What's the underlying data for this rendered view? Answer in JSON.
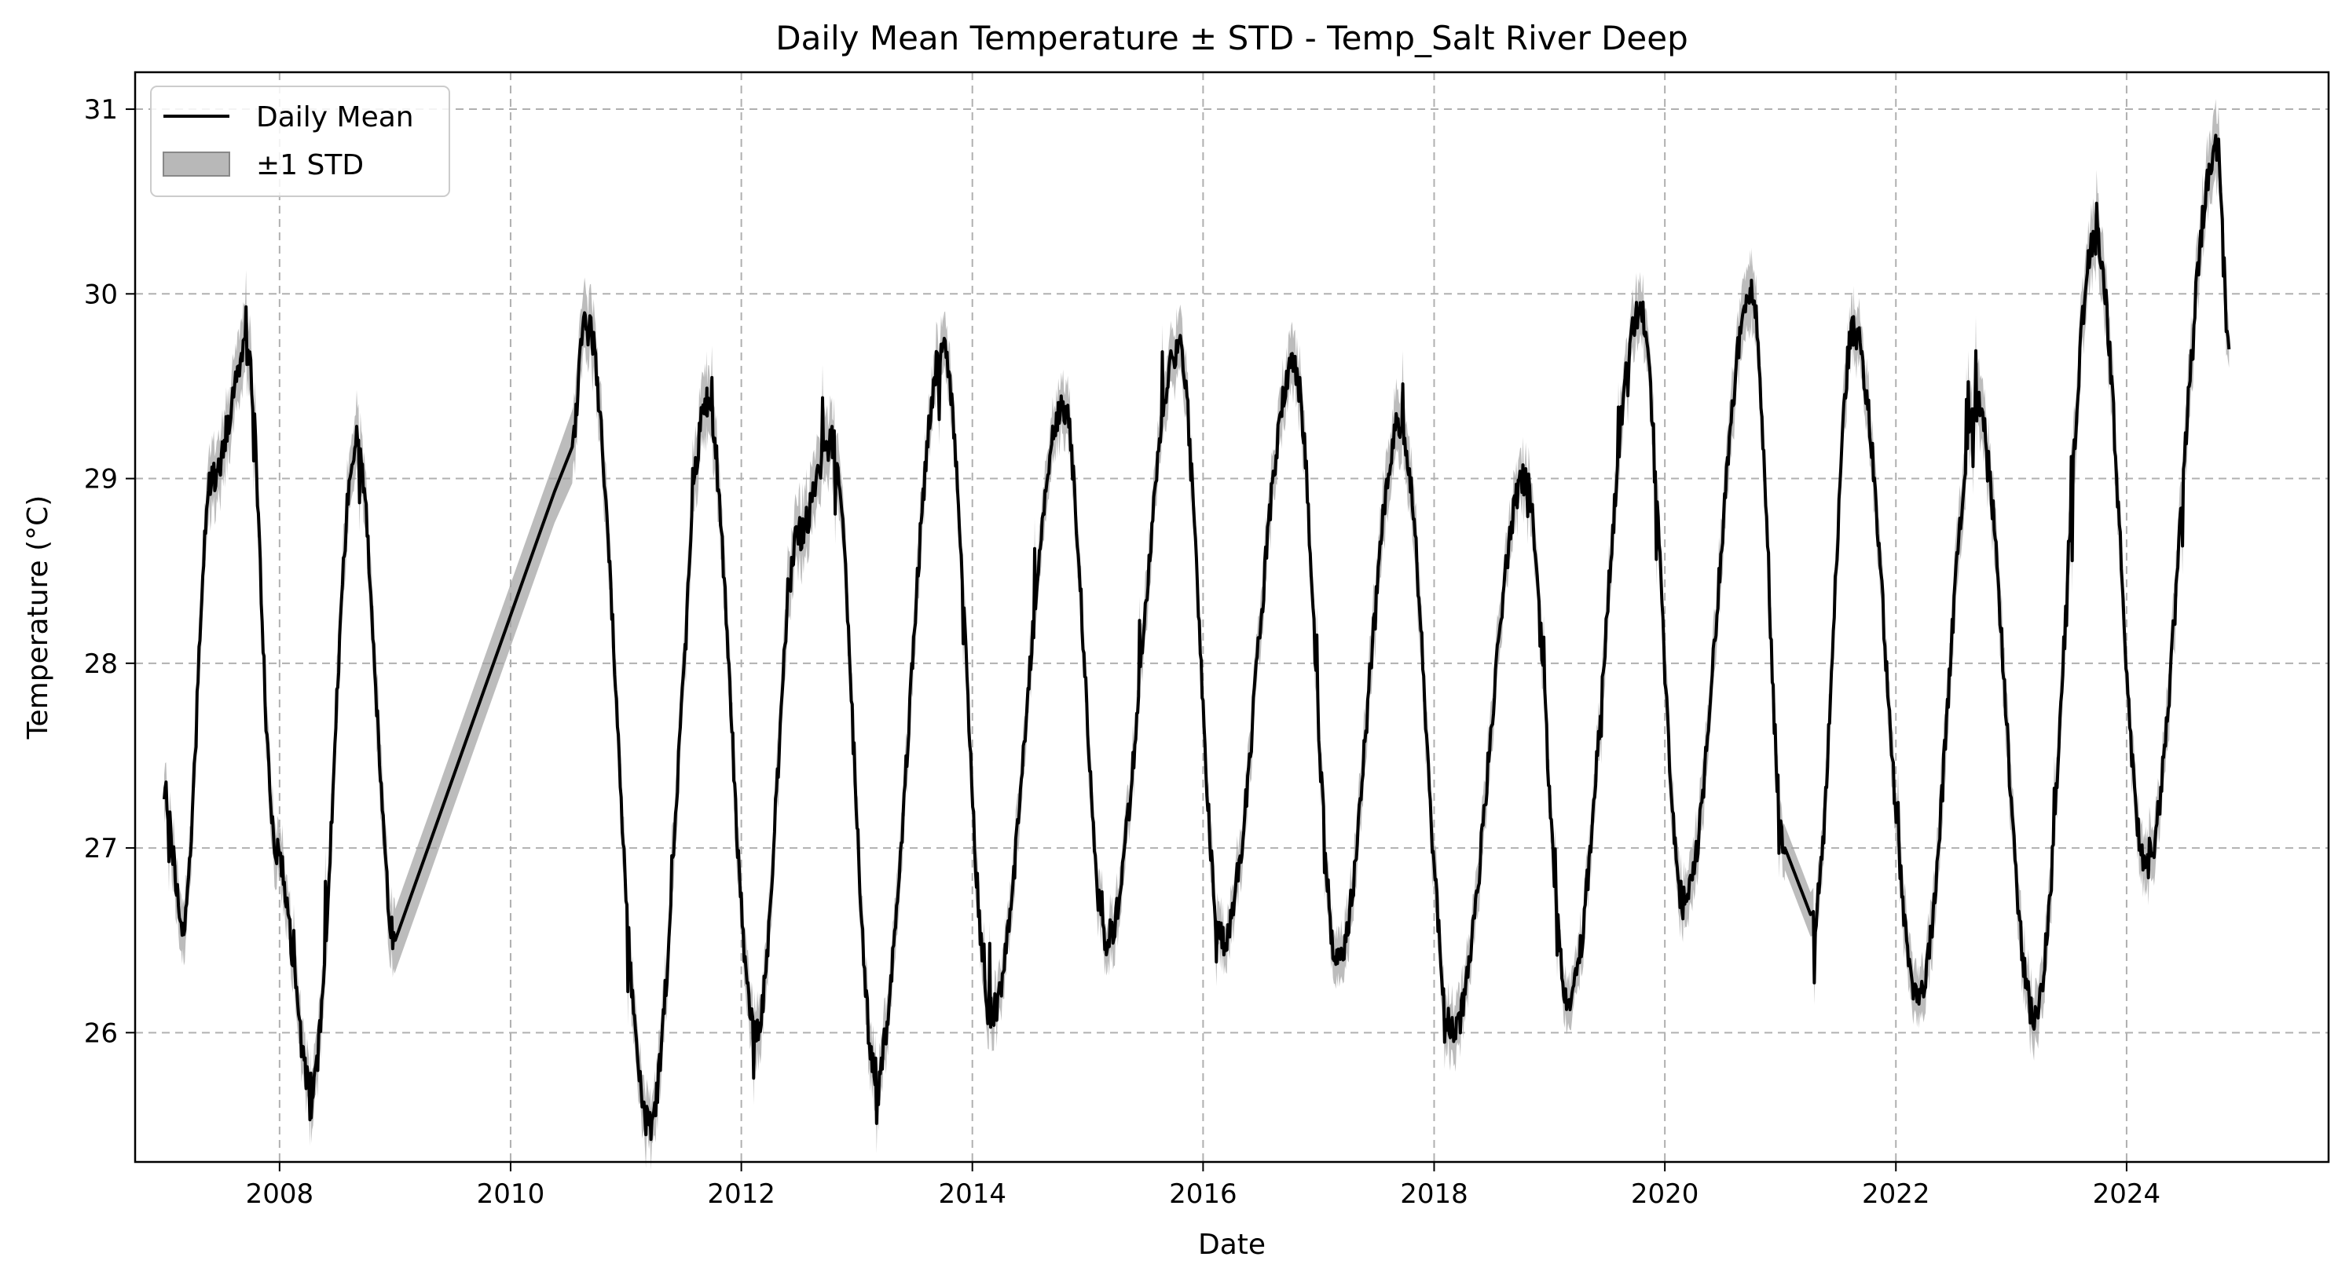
{
  "chart_data": {
    "type": "line",
    "title": "Daily Mean Temperature ± STD - Temp_Salt River Deep",
    "xlabel": "Date",
    "ylabel": "Temperature (°C)",
    "xlim": [
      "2006-10-01",
      "2025-10-01"
    ],
    "ylim": [
      25.3,
      31.2
    ],
    "x_ticks": [
      "2008",
      "2010",
      "2012",
      "2014",
      "2016",
      "2018",
      "2020",
      "2022",
      "2024"
    ],
    "y_ticks": [
      26,
      27,
      28,
      29,
      30,
      31
    ],
    "grid": true,
    "legend_position": "top-left",
    "line_color": "#000000",
    "band_color": "#a0a0a0",
    "series": [
      {
        "name": "Daily Mean",
        "x": [
          "2007-01-01",
          "2007-03-01",
          "2007-06-01",
          "2007-09-20",
          "2007-12-20",
          "2008-04-10",
          "2008-09-01",
          "2009-01-01",
          "2010-07-15",
          "2010-08-25",
          "2011-03-15",
          "2011-09-15",
          "2012-02-15",
          "2012-07-01",
          "2012-10-15",
          "2013-03-01",
          "2013-10-01",
          "2014-03-01",
          "2014-10-15",
          "2015-03-01",
          "2015-10-15",
          "2016-03-01",
          "2016-10-15",
          "2017-03-01",
          "2017-09-15",
          "2018-03-01",
          "2018-10-15",
          "2019-03-01",
          "2019-10-15",
          "2020-03-01",
          "2020-10-01",
          "2021-01-15",
          "2021-04-15",
          "2021-08-20",
          "2022-03-15",
          "2022-09-15",
          "2023-03-15",
          "2023-09-25",
          "2024-03-01",
          "2024-10-15",
          "2024-11-20"
        ],
        "y": [
          27.3,
          26.6,
          29.0,
          29.7,
          27.0,
          25.7,
          29.2,
          26.5,
          29.2,
          29.9,
          25.5,
          29.4,
          26.0,
          28.7,
          29.2,
          25.8,
          29.7,
          26.1,
          29.4,
          26.5,
          29.7,
          26.5,
          29.6,
          26.4,
          29.3,
          26.0,
          29.0,
          26.2,
          29.9,
          26.7,
          30.0,
          27.0,
          26.6,
          29.8,
          26.2,
          29.4,
          26.1,
          30.3,
          26.9,
          30.8,
          29.7
        ]
      },
      {
        "name": "±1 STD",
        "std": [
          0.1,
          0.12,
          0.15,
          0.15,
          0.12,
          0.12,
          0.15,
          0.15,
          0.15,
          0.15,
          0.12,
          0.15,
          0.12,
          0.15,
          0.15,
          0.12,
          0.12,
          0.1,
          0.12,
          0.1,
          0.12,
          0.1,
          0.12,
          0.1,
          0.15,
          0.12,
          0.1,
          0.1,
          0.12,
          0.12,
          0.15,
          0.1,
          0.1,
          0.12,
          0.12,
          0.15,
          0.12,
          0.15,
          0.12,
          0.15,
          0.1
        ]
      }
    ]
  }
}
